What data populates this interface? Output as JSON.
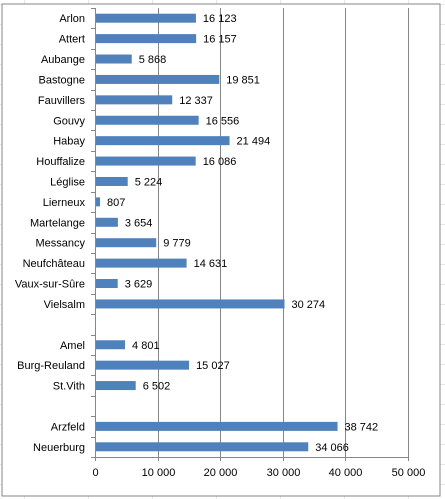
{
  "chart_data": {
    "type": "bar",
    "orientation": "horizontal",
    "title": "",
    "xlabel": "",
    "ylabel": "",
    "categories": [
      "Arlon",
      "Attert",
      "Aubange",
      "Bastogne",
      "Fauvillers",
      "Gouvy",
      "Habay",
      "Houffalize",
      "Léglise",
      "Lierneux",
      "Martelange",
      "Messancy",
      "Neufchâteau",
      "Vaux-sur-Sûre",
      "Vielsalm",
      "",
      "Amel",
      "Burg-Reuland",
      "St.Vith",
      "",
      "Arzfeld",
      "Neuerburg"
    ],
    "values": [
      16123,
      16157,
      5868,
      19851,
      12337,
      16556,
      21494,
      16086,
      5224,
      807,
      3654,
      9779,
      14631,
      3629,
      30274,
      null,
      4801,
      15027,
      6502,
      null,
      38742,
      34066
    ],
    "value_labels": [
      "16 123",
      "16 157",
      "5 868",
      "19 851",
      "12 337",
      "16 556",
      "21 494",
      "16 086",
      "5 224",
      "807",
      "3 654",
      "9 779",
      "14 631",
      "3 629",
      "30 274",
      "",
      "4 801",
      "15 027",
      "6 502",
      "",
      "38 742",
      "34 066"
    ],
    "xlim": [
      0,
      50000
    ],
    "xticks": [
      0,
      10000,
      20000,
      30000,
      40000,
      50000
    ],
    "xtick_labels": [
      "0",
      "10 000",
      "20 000",
      "30 000",
      "40 000",
      "50 000"
    ],
    "grid": "vertical",
    "legend": "none",
    "bar_color": "#4f81bd",
    "grid_color": "#868686",
    "border_color": "#868686"
  }
}
